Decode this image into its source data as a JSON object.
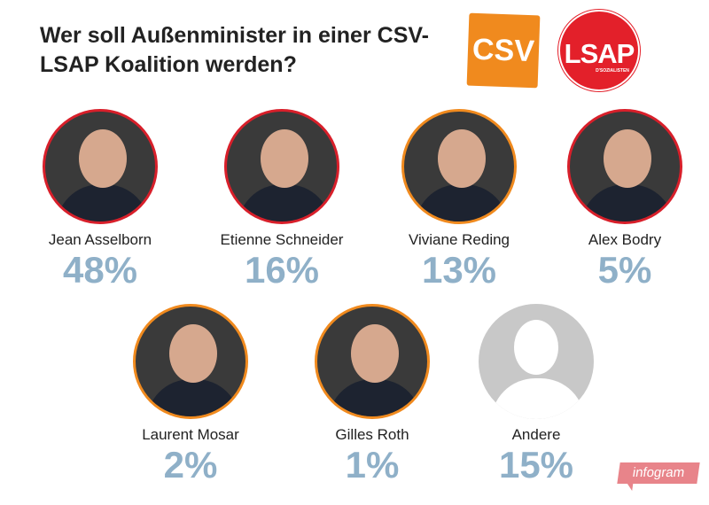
{
  "chart_data": {
    "type": "table",
    "title": "Wer soll Außenminister in einer CSV-LSAP Koalition werden?",
    "categories": [
      "Jean Asselborn",
      "Etienne Schneider",
      "Viviane Reding",
      "Alex Bodry",
      "Laurent Mosar",
      "Gilles Roth",
      "Andere"
    ],
    "values": [
      48,
      16,
      13,
      5,
      2,
      1,
      15
    ],
    "labels": [
      "48%",
      "16%",
      "13%",
      "5%",
      "2%",
      "1%",
      "15%"
    ],
    "unit": "%"
  },
  "logos": {
    "csv": "CSV",
    "lsap": "LSAP",
    "lsap_sub": "D'SOZIALISTEN",
    "infogram": "infogram"
  },
  "colors": {
    "csv": "#f08a1e",
    "lsap": "#e3202a",
    "percent": "#8fb0c8"
  }
}
